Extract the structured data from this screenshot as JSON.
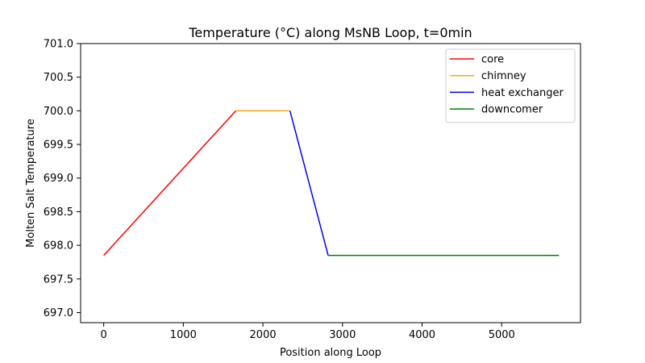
{
  "chart_data": {
    "type": "line",
    "title": "Temperature (°C) along MsNB Loop, t=0min",
    "xlabel": "Position along Loop",
    "ylabel": "Molten Salt Temperature",
    "xlim": [
      -290,
      5990
    ],
    "ylim": [
      696.85,
      701.0
    ],
    "x_ticks": [
      0,
      1000,
      2000,
      3000,
      4000,
      5000
    ],
    "x_tick_labels": [
      "0",
      "1000",
      "2000",
      "3000",
      "4000",
      "5000"
    ],
    "y_ticks": [
      697.0,
      697.5,
      698.0,
      698.5,
      699.0,
      699.5,
      700.0,
      700.5,
      701.0
    ],
    "y_tick_labels": [
      "697.0",
      "697.5",
      "698.0",
      "698.5",
      "699.0",
      "699.5",
      "700.0",
      "700.5",
      "701.0"
    ],
    "grid": false,
    "legend_position": "top-right",
    "series": [
      {
        "name": "core",
        "color": "#ff0000",
        "x": [
          0,
          1660
        ],
        "y": [
          697.85,
          700.0
        ]
      },
      {
        "name": "chimney",
        "color": "#ffa500",
        "x": [
          1660,
          2340
        ],
        "y": [
          700.0,
          700.0
        ]
      },
      {
        "name": "heat exchanger",
        "color": "#0000ff",
        "x": [
          2340,
          2820
        ],
        "y": [
          700.0,
          697.85
        ]
      },
      {
        "name": "downcomer",
        "color": "#008000",
        "x": [
          2820,
          5720
        ],
        "y": [
          697.85,
          697.85
        ]
      }
    ]
  }
}
